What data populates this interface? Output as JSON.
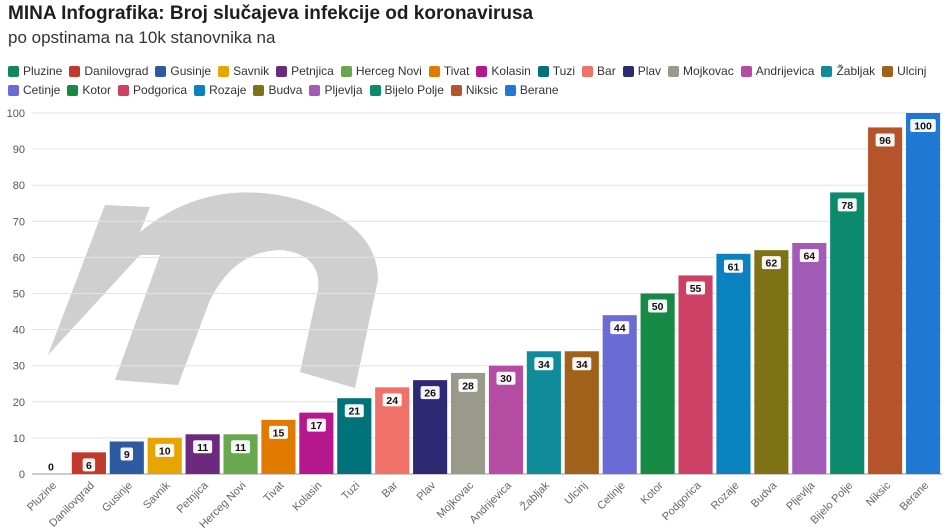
{
  "title": "MINA Infografika: Broj slučajeva infekcije od koronavirusa",
  "subtitle": "po opstinama na 10k stanovnika na",
  "chart_data": {
    "type": "bar",
    "categories": [
      "Pluzine",
      "Danilovgrad",
      "Gusinje",
      "Savnik",
      "Petnjica",
      "Herceg Novi",
      "Tivat",
      "Kolasin",
      "Tuzi",
      "Bar",
      "Plav",
      "Mojkovac",
      "Andrijevica",
      "Žabljak",
      "Ulcinj",
      "Cetinje",
      "Kotor",
      "Podgorica",
      "Rozaje",
      "Budva",
      "Pljevlja",
      "Bijelo Polje",
      "Niksic",
      "Berane"
    ],
    "values": [
      0,
      6,
      9,
      10,
      11,
      11,
      15,
      17,
      21,
      24,
      26,
      28,
      30,
      34,
      34,
      44,
      50,
      55,
      61,
      62,
      64,
      78,
      96,
      100
    ],
    "colors": [
      "#14865a",
      "#c0392b",
      "#2d5aa0",
      "#e6a500",
      "#6c2a7e",
      "#6aa84f",
      "#e07b00",
      "#b7178c",
      "#00737a",
      "#f07167",
      "#2d2a73",
      "#9a9a8a",
      "#b44ca1",
      "#0f8b9a",
      "#a0611b",
      "#6b6bd6",
      "#168a45",
      "#cc4066",
      "#0a82bf",
      "#7f7215",
      "#a35bb8",
      "#0b8a6e",
      "#b5532a",
      "#1f78d1"
    ],
    "ylim": [
      0,
      100
    ],
    "yticks": [
      0,
      10,
      20,
      30,
      40,
      50,
      60,
      70,
      80,
      90,
      100
    ],
    "grid": true,
    "legend_position": "top"
  }
}
